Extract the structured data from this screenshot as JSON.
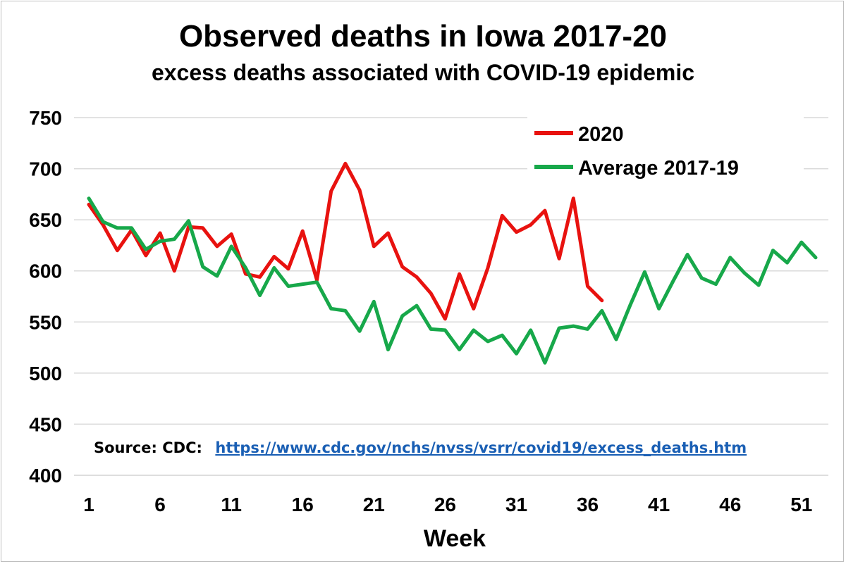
{
  "chart_data": {
    "type": "line",
    "title": "Observed deaths in Iowa 2017-20",
    "subtitle": "excess deaths associated with COVID-19 epidemic",
    "xlabel": "Week",
    "ylabel": "",
    "xlim": [
      1,
      52
    ],
    "ylim": [
      400,
      750
    ],
    "yticks": [
      "400",
      "450",
      "500",
      "550",
      "600",
      "650",
      "700",
      "750"
    ],
    "xticks": [
      "1",
      "6",
      "11",
      "16",
      "21",
      "26",
      "31",
      "36",
      "41",
      "46",
      "51"
    ],
    "grid": true,
    "legend_position": "top-right",
    "series": [
      {
        "name": "2020",
        "color": "#e8120f",
        "x": [
          1,
          2,
          3,
          4,
          5,
          6,
          7,
          8,
          9,
          10,
          11,
          12,
          13,
          14,
          15,
          16,
          17,
          18,
          19,
          20,
          21,
          22,
          23,
          24,
          25,
          26,
          27,
          28,
          29,
          30,
          31,
          32,
          33,
          34,
          35,
          36,
          37
        ],
        "values": [
          665,
          645,
          620,
          640,
          615,
          637,
          600,
          643,
          642,
          624,
          636,
          597,
          594,
          614,
          602,
          639,
          591,
          678,
          705,
          679,
          624,
          637,
          604,
          594,
          578,
          553,
          597,
          563,
          603,
          654,
          638,
          645,
          659,
          612,
          671,
          585,
          571
        ]
      },
      {
        "name": "Average 2017-19",
        "color": "#17a84a",
        "x": [
          1,
          2,
          3,
          4,
          5,
          6,
          7,
          8,
          9,
          10,
          11,
          12,
          13,
          14,
          15,
          16,
          17,
          18,
          19,
          20,
          21,
          22,
          23,
          24,
          25,
          26,
          27,
          28,
          29,
          30,
          31,
          32,
          33,
          34,
          35,
          36,
          37,
          38,
          39,
          40,
          41,
          42,
          43,
          44,
          45,
          46,
          47,
          48,
          49,
          50,
          51,
          52
        ],
        "values": [
          671,
          648,
          642,
          642,
          621,
          629,
          631,
          649,
          604,
          595,
          624,
          603,
          576,
          603,
          585,
          587,
          589,
          563,
          561,
          541,
          570,
          523,
          556,
          566,
          543,
          542,
          523,
          542,
          531,
          537,
          519,
          542,
          510,
          544,
          546,
          543,
          561,
          533,
          567,
          599,
          563,
          590,
          616,
          593,
          587,
          613,
          598,
          586,
          620,
          608,
          628,
          613
        ]
      }
    ]
  },
  "source": {
    "label": "Source:  CDC:",
    "url_text": "https://www.cdc.gov/nchs/nvss/vsrr/covid19/excess_deaths.htm"
  }
}
